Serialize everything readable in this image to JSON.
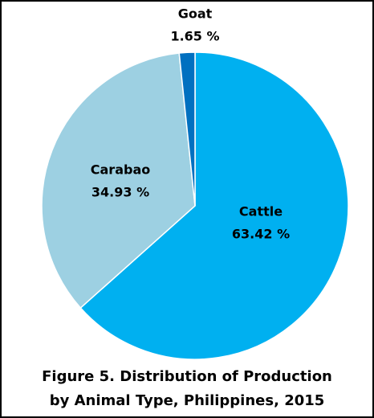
{
  "chart_data": {
    "type": "pie",
    "title": "Figure 5. Distribution of Production by Animal Type, Philippines, 2015",
    "categories": [
      "Cattle",
      "Carabao",
      "Goat"
    ],
    "values": [
      63.42,
      34.93,
      1.65
    ],
    "value_labels": [
      "63.42 %",
      "34.93 %",
      "1.65 %"
    ],
    "colors": [
      "#00b0f0",
      "#9dd0e2",
      "#0070c0"
    ]
  }
}
